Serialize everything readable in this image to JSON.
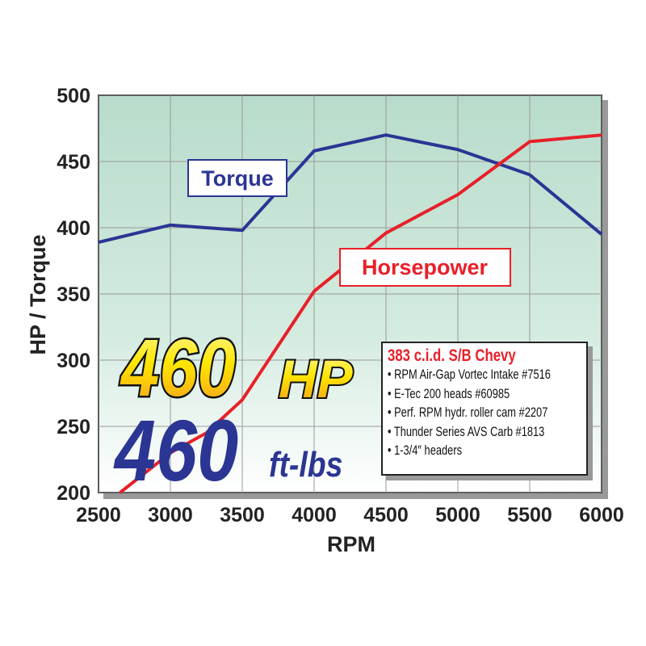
{
  "chart_data": {
    "type": "line",
    "xlabel": "RPM",
    "ylabel": "HP / Torque",
    "xlim": [
      2500,
      6000
    ],
    "ylim": [
      200,
      500
    ],
    "x_ticks": [
      "2500",
      "3000",
      "3500",
      "4000",
      "4500",
      "5000",
      "5500",
      "6000"
    ],
    "y_ticks": [
      "200",
      "250",
      "300",
      "350",
      "400",
      "450",
      "500"
    ],
    "grid": true,
    "series": [
      {
        "name": "Torque",
        "color": "#2b3594",
        "x": [
          2500,
          3000,
          3500,
          4000,
          4500,
          5000,
          5500,
          6000
        ],
        "y": [
          389,
          402,
          398,
          458,
          470,
          459,
          440,
          395
        ]
      },
      {
        "name": "Horsepower",
        "color": "#e8202a",
        "x": [
          2650,
          3000,
          3250,
          3500,
          4000,
          4500,
          5000,
          5500,
          6000
        ],
        "y": [
          200,
          230,
          245,
          270,
          352,
          396,
          425,
          465,
          470
        ]
      }
    ],
    "annotations": {
      "hp_value": "460",
      "hp_unit": "HP",
      "tq_value": "460",
      "tq_unit": "ft-lbs"
    },
    "specs": {
      "title": "383 c.i.d. S/B Chevy",
      "items": [
        "• RPM Air-Gap Vortec Intake #7516",
        "• E-Tec 200 heads #60985",
        "• Perf. RPM hydr. roller cam #2207",
        "• Thunder Series AVS Carb #1813",
        "• 1-3/4″ headers"
      ]
    }
  }
}
